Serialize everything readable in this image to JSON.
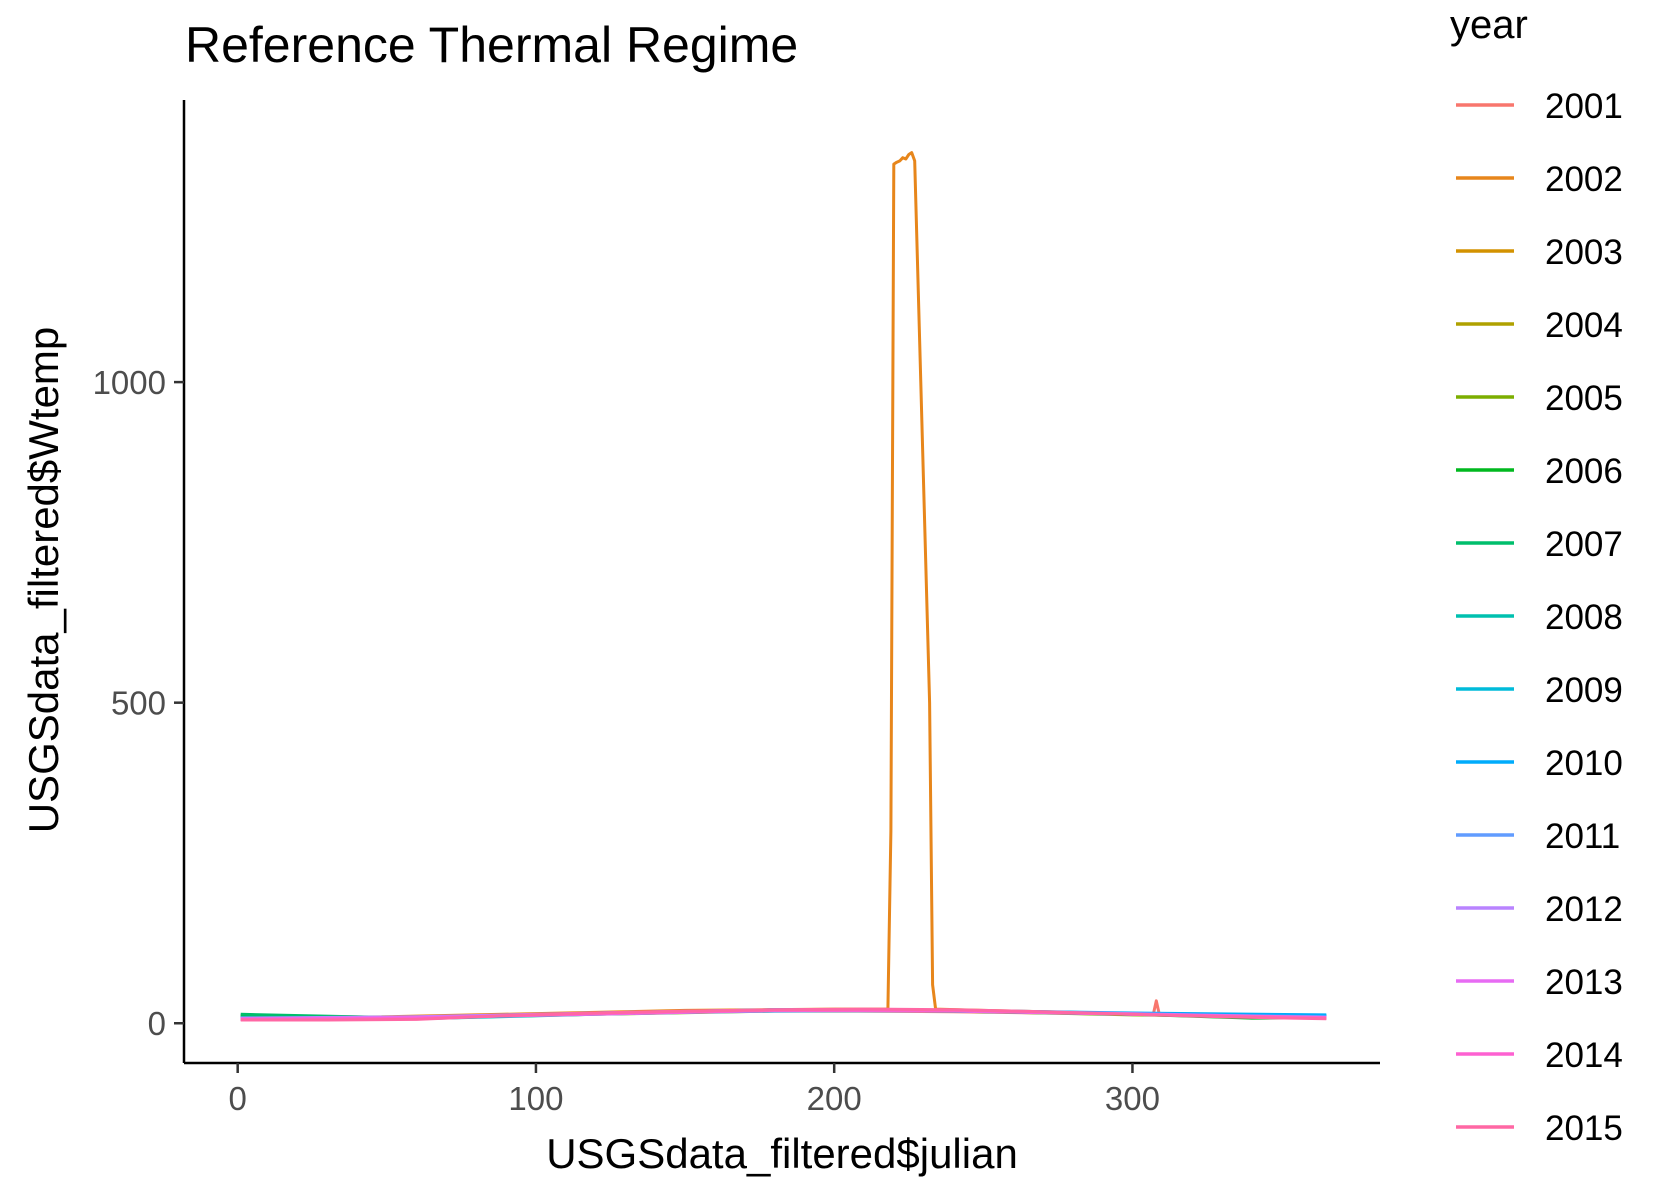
{
  "chart_data": {
    "type": "line",
    "title": "Reference Thermal Regime",
    "xlabel": "USGSdata_filtered$julian",
    "ylabel": "USGSdata_filtered$Wtemp",
    "xlim": [
      -18,
      383
    ],
    "ylim": [
      -62,
      1440
    ],
    "x_ticks": [
      0,
      100,
      200,
      300
    ],
    "y_ticks": [
      0,
      500,
      1000
    ],
    "grid": false,
    "legend": {
      "title": "year",
      "position": "right"
    },
    "series": [
      {
        "name": "2001",
        "color": "#F8766D",
        "x": [
          1,
          60,
          120,
          180,
          240,
          300,
          307,
          308,
          309,
          312,
          330,
          365
        ],
        "y": [
          6,
          8,
          15,
          20,
          18,
          14,
          14,
          35,
          14,
          13,
          10,
          8
        ]
      },
      {
        "name": "2002",
        "color": "#E7861B",
        "x": [
          1,
          50,
          100,
          150,
          200,
          218,
          219,
          220,
          221,
          222,
          223,
          224,
          225,
          226,
          227,
          232,
          233,
          234,
          250,
          300,
          365
        ],
        "y": [
          8,
          10,
          15,
          20,
          22,
          22,
          300,
          1340,
          1343,
          1345,
          1350,
          1348,
          1355,
          1358,
          1345,
          500,
          60,
          22,
          20,
          15,
          9
        ]
      },
      {
        "name": "2003",
        "color": "#D39200",
        "x": [
          1,
          60,
          120,
          180,
          240,
          300,
          365
        ],
        "y": [
          7,
          9,
          16,
          21,
          20,
          14,
          8
        ]
      },
      {
        "name": "2004",
        "color": "#AFA100",
        "x": [
          1,
          60,
          120,
          180,
          240,
          300,
          365
        ],
        "y": [
          8,
          9,
          15,
          20,
          19,
          15,
          9
        ]
      },
      {
        "name": "2005",
        "color": "#7CAE00",
        "x": [
          1,
          60,
          120,
          180,
          240,
          300,
          365
        ],
        "y": [
          10,
          8,
          14,
          19,
          19,
          13,
          9
        ]
      },
      {
        "name": "2006",
        "color": "#00B81F",
        "x": [
          1,
          60,
          120,
          180,
          240,
          300,
          340,
          365
        ],
        "y": [
          12,
          9,
          15,
          20,
          19,
          14,
          8,
          9
        ]
      },
      {
        "name": "2007",
        "color": "#00BE6C",
        "x": [
          1,
          60,
          120,
          180,
          240,
          300,
          365
        ],
        "y": [
          14,
          8,
          15,
          21,
          20,
          14,
          10
        ]
      },
      {
        "name": "2008",
        "color": "#00C0AF",
        "x": [
          1,
          60,
          120,
          180,
          240,
          300,
          365
        ],
        "y": [
          9,
          7,
          14,
          20,
          20,
          15,
          11
        ]
      },
      {
        "name": "2009",
        "color": "#00BBDA",
        "x": [
          1,
          60,
          120,
          180,
          240,
          300,
          365
        ],
        "y": [
          8,
          7,
          15,
          20,
          19,
          15,
          12
        ]
      },
      {
        "name": "2010",
        "color": "#00ACFC",
        "x": [
          1,
          60,
          120,
          180,
          240,
          300,
          365
        ],
        "y": [
          6,
          8,
          16,
          21,
          20,
          16,
          13
        ]
      },
      {
        "name": "2011",
        "color": "#619CFF",
        "x": [
          1,
          60,
          120,
          180,
          240,
          300,
          365
        ],
        "y": [
          7,
          9,
          15,
          19,
          20,
          14,
          10
        ]
      },
      {
        "name": "2012",
        "color": "#B983FF",
        "x": [
          1,
          60,
          120,
          180,
          240,
          300,
          365
        ],
        "y": [
          8,
          10,
          16,
          21,
          20,
          15,
          9
        ]
      },
      {
        "name": "2013",
        "color": "#E76BF3",
        "x": [
          1,
          60,
          120,
          180,
          240,
          300,
          365
        ],
        "y": [
          7,
          9,
          14,
          20,
          19,
          14,
          8
        ]
      },
      {
        "name": "2014",
        "color": "#FD61D1",
        "x": [
          1,
          60,
          120,
          180,
          240,
          300,
          365
        ],
        "y": [
          6,
          8,
          15,
          20,
          20,
          14,
          9
        ]
      },
      {
        "name": "2015",
        "color": "#FF67A4",
        "x": [
          1,
          30,
          60,
          90,
          120,
          150,
          180,
          210,
          240,
          270,
          300,
          330,
          365
        ],
        "y": [
          5,
          5,
          6,
          12,
          16,
          19,
          21,
          22,
          21,
          18,
          14,
          10,
          7
        ]
      }
    ]
  }
}
